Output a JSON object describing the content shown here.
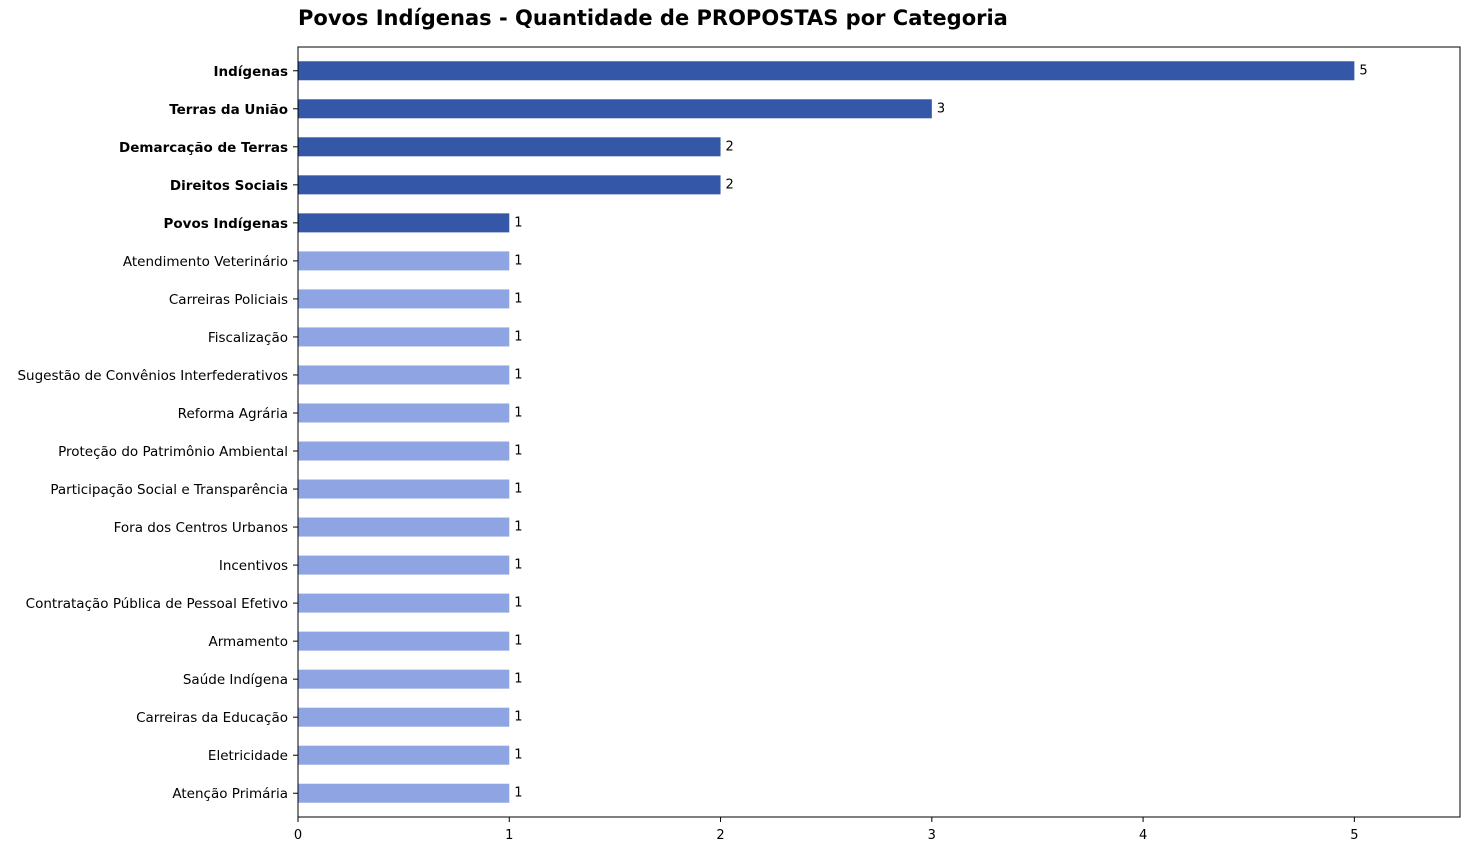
{
  "chart_data": {
    "type": "bar",
    "orientation": "horizontal",
    "title": "Povos Indígenas - Quantidade de PROPOSTAS por Categoria",
    "xlabel": "",
    "ylabel": "",
    "xlim": [
      0,
      5.5
    ],
    "x_ticks": [
      0,
      1,
      2,
      3,
      4,
      5
    ],
    "grid": false,
    "categories": [
      "Indígenas",
      "Terras da União",
      "Demarcação de Terras",
      "Direitos Sociais",
      "Povos Indígenas",
      "Atendimento Veterinário",
      "Carreiras Policiais",
      "Fiscalização",
      "Sugestão de Convênios Interfederativos",
      "Reforma Agrária",
      "Proteção do Patrimônio Ambiental",
      "Participação Social e Transparência",
      "Fora dos Centros Urbanos",
      "Incentivos",
      "Contratação Pública de Pessoal Efetivo",
      "Armamento",
      "Saúde Indígena",
      "Carreiras da Educação",
      "Eletricidade",
      "Atenção Primária"
    ],
    "values": [
      5,
      3,
      2,
      2,
      1,
      1,
      1,
      1,
      1,
      1,
      1,
      1,
      1,
      1,
      1,
      1,
      1,
      1,
      1,
      1
    ],
    "highlighted": [
      true,
      true,
      true,
      true,
      true,
      false,
      false,
      false,
      false,
      false,
      false,
      false,
      false,
      false,
      false,
      false,
      false,
      false,
      false,
      false
    ],
    "colors": {
      "highlight": "#3457a8",
      "normal": "#8fa5e3"
    }
  }
}
